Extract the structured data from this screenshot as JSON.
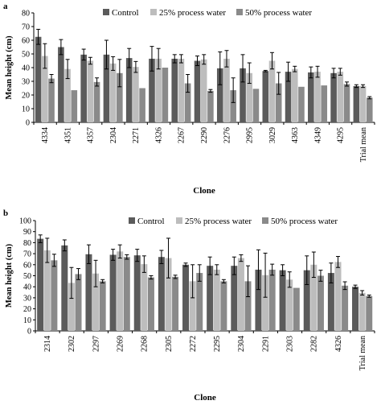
{
  "colors": {
    "control": "#5b5b5b",
    "pw25": "#bdbdbd",
    "pw50": "#8a8a8a",
    "axis": "#000000"
  },
  "chart_data": [
    {
      "label": "a",
      "type": "bar",
      "xlabel": "Clone",
      "ylabel": "Mean height (cm)",
      "ylim": [
        0,
        80
      ],
      "yticks": [
        0,
        10,
        20,
        30,
        40,
        50,
        60,
        70,
        80
      ],
      "legend_position": "top",
      "categories": [
        "4334",
        "4351",
        "4357",
        "2304",
        "2271",
        "4326",
        "2267",
        "2290",
        "2276",
        "2995",
        "3029",
        "4363",
        "4349",
        "4295",
        "Trial mean"
      ],
      "series": [
        {
          "name": "Control",
          "color_key": "control",
          "values": [
            62.5,
            55,
            49.5,
            49.5,
            47,
            46.5,
            46.5,
            45,
            39.5,
            39.5,
            37.5,
            37,
            36.5,
            36,
            26.5
          ],
          "errors": [
            5.5,
            5.5,
            4,
            10.5,
            7,
            9,
            3,
            3.5,
            12,
            10,
            0.5,
            7,
            4,
            3.5,
            1
          ]
        },
        {
          "name": "25% process water",
          "color_key": "pw25",
          "values": [
            48.5,
            39,
            45,
            43,
            40.5,
            46.5,
            46.5,
            46,
            46.5,
            36,
            45,
            39,
            37,
            37,
            26.5
          ],
          "errors": [
            9,
            7,
            2.5,
            5,
            4,
            7.5,
            3,
            3.5,
            6,
            7.5,
            6,
            2,
            4,
            2.5,
            1
          ]
        },
        {
          "name": "50% process water",
          "color_key": "pw50",
          "values": [
            32,
            23.5,
            29.5,
            36,
            25,
            40,
            28.5,
            23,
            23.5,
            24.5,
            28.5,
            26,
            27,
            28,
            18
          ],
          "errors": [
            3,
            0,
            3,
            10,
            0,
            0,
            6.5,
            1,
            9,
            0,
            8,
            0,
            0,
            1.5,
            0.8
          ]
        }
      ]
    },
    {
      "label": "b",
      "type": "bar",
      "xlabel": "Clone",
      "ylabel": "Mean height (cm)",
      "ylim": [
        0,
        100
      ],
      "yticks": [
        0,
        10,
        20,
        30,
        40,
        50,
        60,
        70,
        80,
        90,
        100
      ],
      "legend_position": "top",
      "categories": [
        "2314",
        "2302",
        "2297",
        "2269",
        "2268",
        "2305",
        "2272",
        "2295",
        "2304",
        "2291",
        "2303",
        "2282",
        "4326",
        "Trial mean"
      ],
      "series": [
        {
          "name": "Control",
          "color_key": "control",
          "values": [
            83.5,
            77.5,
            69.5,
            69,
            68.5,
            67,
            60,
            59,
            59,
            55.5,
            55,
            55,
            52.5,
            40
          ],
          "errors": [
            3.5,
            5,
            8.5,
            5,
            5.5,
            6,
            1.5,
            8,
            8,
            18,
            5,
            13,
            9,
            1.5
          ]
        },
        {
          "name": "25% process water",
          "color_key": "pw25",
          "values": [
            73,
            43.5,
            52,
            72,
            60.5,
            66,
            45,
            55.5,
            66,
            50.5,
            46.5,
            60,
            62.5,
            34.5
          ],
          "errors": [
            11,
            14,
            12,
            6,
            7.5,
            18,
            15,
            4.5,
            3,
            20,
            7,
            11.5,
            5,
            2
          ]
        },
        {
          "name": "50% process water",
          "color_key": "pw50",
          "values": [
            64,
            51.5,
            45,
            67,
            48.5,
            49,
            52.5,
            45,
            45,
            55.5,
            39,
            50,
            41,
            31.5
          ],
          "errors": [
            5.5,
            5,
            1.5,
            2,
            1.5,
            1.5,
            7.5,
            1.5,
            14,
            5,
            0,
            5,
            3.5,
            1
          ]
        }
      ]
    }
  ]
}
